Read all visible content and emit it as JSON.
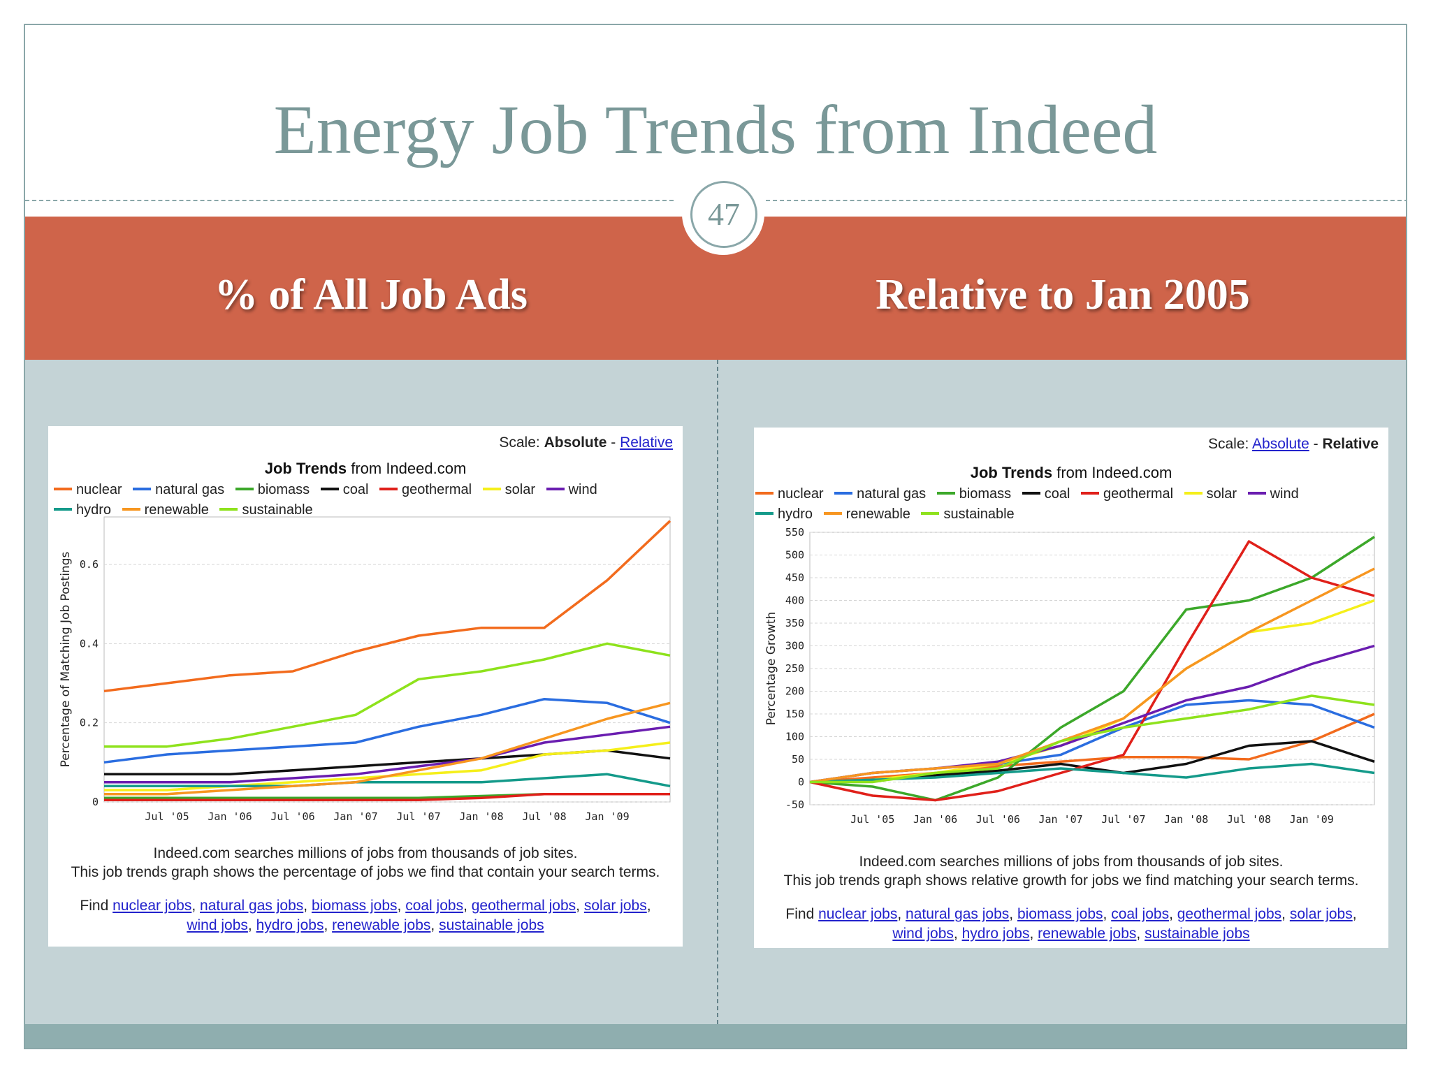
{
  "slide": {
    "title": "Energy Job Trends from Indeed",
    "page_number": "47",
    "left_heading": "% of All Job Ads",
    "right_heading": "Relative to Jan 2005"
  },
  "panels": [
    {
      "scale_label": "Scale:",
      "scale_absolute": "Absolute",
      "scale_sep": "-",
      "scale_relative": "Relative",
      "active_scale": "absolute",
      "chart_title_bold": "Job Trends",
      "chart_title_rest": "from Indeed.com",
      "desc_line1": "Indeed.com searches millions of jobs from thousands of job sites.",
      "desc_line2": "This job trends graph shows the percentage of jobs we find that contain your search terms.",
      "find_label": "Find"
    },
    {
      "scale_label": "Scale:",
      "scale_absolute": "Absolute",
      "scale_sep": "-",
      "scale_relative": "Relative",
      "active_scale": "relative",
      "chart_title_bold": "Job Trends",
      "chart_title_rest": "from Indeed.com",
      "desc_line1": "Indeed.com searches millions of jobs from thousands of job sites.",
      "desc_line2": "This job trends graph shows relative growth for jobs we find matching your search terms.",
      "find_label": "Find"
    }
  ],
  "links": [
    "nuclear jobs",
    "natural gas jobs",
    "biomass jobs",
    "coal jobs",
    "geothermal jobs",
    "solar jobs",
    "wind jobs",
    "hydro jobs",
    "renewable jobs",
    "sustainable jobs"
  ],
  "legend": [
    {
      "name": "nuclear",
      "color": "#f26b1d"
    },
    {
      "name": "natural gas",
      "color": "#2a6de0"
    },
    {
      "name": "biomass",
      "color": "#3ca82a"
    },
    {
      "name": "coal",
      "color": "#111111"
    },
    {
      "name": "geothermal",
      "color": "#e0201a"
    },
    {
      "name": "solar",
      "color": "#f5ef1a"
    },
    {
      "name": "wind",
      "color": "#6a1db0"
    },
    {
      "name": "hydro",
      "color": "#149a8a"
    },
    {
      "name": "renewable",
      "color": "#f79620"
    },
    {
      "name": "sustainable",
      "color": "#8ee21c"
    }
  ],
  "chart_data": [
    {
      "type": "line",
      "title": "Job Trends from Indeed.com",
      "xlabel": "",
      "ylabel": "Percentage of Matching Job Postings",
      "x_ticks": [
        "Jul '05",
        "Jan '06",
        "Jul '06",
        "Jan '07",
        "Jul '07",
        "Jan '08",
        "Jul '08",
        "Jan '09"
      ],
      "y_ticks": [
        "0",
        "0.2",
        "0.4",
        "0.6"
      ],
      "ylim": [
        0,
        0.72
      ],
      "x": [
        "Jan 2005",
        "Jul 2005",
        "Jan 2006",
        "Jul 2006",
        "Jan 2007",
        "Jul 2007",
        "Jan 2008",
        "Jul 2008",
        "Jan 2009",
        "May 2009"
      ],
      "grid": true,
      "series": [
        {
          "name": "nuclear",
          "color": "#f26b1d",
          "values": [
            0.28,
            0.3,
            0.32,
            0.33,
            0.38,
            0.42,
            0.44,
            0.44,
            0.56,
            0.71
          ]
        },
        {
          "name": "natural gas",
          "color": "#2a6de0",
          "values": [
            0.1,
            0.12,
            0.13,
            0.14,
            0.15,
            0.19,
            0.22,
            0.26,
            0.25,
            0.2
          ]
        },
        {
          "name": "biomass",
          "color": "#3ca82a",
          "values": [
            0.01,
            0.01,
            0.01,
            0.01,
            0.01,
            0.01,
            0.015,
            0.02,
            0.02,
            0.02
          ]
        },
        {
          "name": "coal",
          "color": "#111111",
          "values": [
            0.07,
            0.07,
            0.07,
            0.08,
            0.09,
            0.1,
            0.11,
            0.12,
            0.13,
            0.11
          ]
        },
        {
          "name": "geothermal",
          "color": "#e0201a",
          "values": [
            0.005,
            0.005,
            0.005,
            0.005,
            0.005,
            0.005,
            0.01,
            0.02,
            0.02,
            0.02
          ]
        },
        {
          "name": "solar",
          "color": "#f5ef1a",
          "values": [
            0.03,
            0.03,
            0.04,
            0.05,
            0.06,
            0.07,
            0.08,
            0.12,
            0.13,
            0.15
          ]
        },
        {
          "name": "wind",
          "color": "#6a1db0",
          "values": [
            0.05,
            0.05,
            0.05,
            0.06,
            0.07,
            0.09,
            0.11,
            0.15,
            0.17,
            0.19
          ]
        },
        {
          "name": "hydro",
          "color": "#149a8a",
          "values": [
            0.04,
            0.04,
            0.04,
            0.04,
            0.05,
            0.05,
            0.05,
            0.06,
            0.07,
            0.04
          ]
        },
        {
          "name": "renewable",
          "color": "#f79620",
          "values": [
            0.02,
            0.02,
            0.03,
            0.04,
            0.05,
            0.08,
            0.11,
            0.16,
            0.21,
            0.25
          ]
        },
        {
          "name": "sustainable",
          "color": "#8ee21c",
          "values": [
            0.14,
            0.14,
            0.16,
            0.19,
            0.22,
            0.31,
            0.33,
            0.36,
            0.4,
            0.37
          ]
        }
      ]
    },
    {
      "type": "line",
      "title": "Job Trends from Indeed.com",
      "xlabel": "",
      "ylabel": "Percentage Growth",
      "x_ticks": [
        "Jul '05",
        "Jan '06",
        "Jul '06",
        "Jan '07",
        "Jul '07",
        "Jan '08",
        "Jul '08",
        "Jan '09"
      ],
      "y_ticks": [
        "-50",
        "0",
        "50",
        "100",
        "150",
        "200",
        "250",
        "300",
        "350",
        "400",
        "450",
        "500",
        "550"
      ],
      "ylim": [
        -50,
        550
      ],
      "x": [
        "Jan 2005",
        "Jul 2005",
        "Jan 2006",
        "Jul 2006",
        "Jan 2007",
        "Jul 2007",
        "Jan 2008",
        "Jul 2008",
        "Jan 2009",
        "May 2009"
      ],
      "grid": true,
      "series": [
        {
          "name": "nuclear",
          "color": "#f26b1d",
          "values": [
            0,
            10,
            20,
            35,
            45,
            55,
            55,
            50,
            90,
            150
          ]
        },
        {
          "name": "natural gas",
          "color": "#2a6de0",
          "values": [
            0,
            20,
            30,
            40,
            60,
            120,
            170,
            180,
            170,
            120
          ]
        },
        {
          "name": "biomass",
          "color": "#3ca82a",
          "values": [
            0,
            -10,
            -40,
            10,
            120,
            200,
            380,
            400,
            450,
            540
          ]
        },
        {
          "name": "coal",
          "color": "#111111",
          "values": [
            0,
            5,
            15,
            25,
            40,
            20,
            40,
            80,
            90,
            45
          ]
        },
        {
          "name": "geothermal",
          "color": "#e0201a",
          "values": [
            0,
            -30,
            -40,
            -20,
            20,
            60,
            300,
            530,
            450,
            410
          ]
        },
        {
          "name": "solar",
          "color": "#f5ef1a",
          "values": [
            0,
            5,
            20,
            40,
            80,
            140,
            250,
            330,
            350,
            400
          ]
        },
        {
          "name": "wind",
          "color": "#6a1db0",
          "values": [
            0,
            20,
            30,
            45,
            80,
            130,
            180,
            210,
            260,
            300
          ]
        },
        {
          "name": "hydro",
          "color": "#149a8a",
          "values": [
            0,
            5,
            10,
            20,
            30,
            20,
            10,
            30,
            40,
            20
          ]
        },
        {
          "name": "renewable",
          "color": "#f79620",
          "values": [
            0,
            20,
            30,
            40,
            90,
            140,
            250,
            330,
            400,
            470
          ]
        },
        {
          "name": "sustainable",
          "color": "#8ee21c",
          "values": [
            0,
            0,
            20,
            30,
            90,
            120,
            140,
            160,
            190,
            170
          ]
        }
      ]
    }
  ]
}
